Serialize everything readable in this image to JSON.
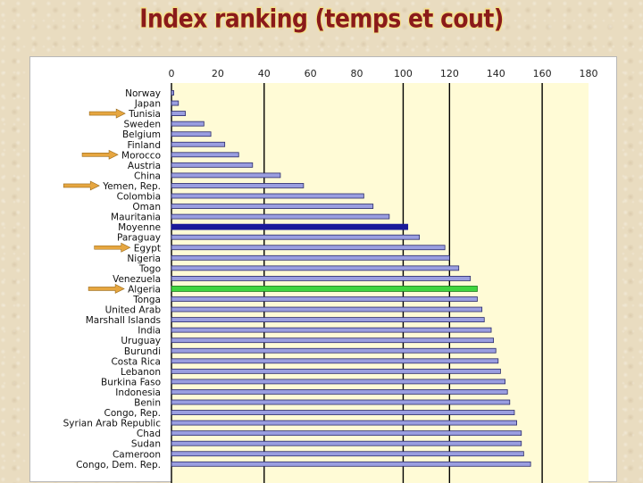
{
  "slide": {
    "title": "Index ranking (temps et cout)"
  },
  "colors": {
    "bar": "#9a9ee0",
    "bar_stroke": "#2a2a6a",
    "moyenne": "#1a1a9a",
    "algeria": "#3fd53f",
    "plot_bg": "#fffbd6",
    "arrow": "#e6a640"
  },
  "chart_data": {
    "type": "bar",
    "orientation": "horizontal",
    "title": "Index ranking (temps et cout)",
    "xlabel": "",
    "ylabel": "",
    "xlim": [
      0,
      180
    ],
    "ticks": [
      0,
      20,
      40,
      60,
      80,
      100,
      120,
      140,
      160,
      180
    ],
    "grid": "vertical lines at 0, 40, 100, 120, 160",
    "gridlines": [
      0,
      40,
      100,
      120,
      160
    ],
    "categories": [
      "Norway",
      "Japan",
      "Tunisia",
      "Sweden",
      "Belgium",
      "Finland",
      "Morocco",
      "Austria",
      "China",
      "Yemen, Rep.",
      "Colombia",
      "Oman",
      "Mauritania",
      "Moyenne",
      "Paraguay",
      "Egypt",
      "Nigeria",
      "Togo",
      "Venezuela",
      "Algeria",
      "Tonga",
      "United Arab",
      "Marshall Islands",
      "India",
      "Uruguay",
      "Burundi",
      "Costa Rica",
      "Lebanon",
      "Burkina Faso",
      "Indonesia",
      "Benin",
      "Congo, Rep.",
      "Syrian Arab Republic",
      "Chad",
      "Sudan",
      "Cameroon",
      "Congo, Dem. Rep."
    ],
    "values": [
      1,
      3,
      6,
      14,
      17,
      23,
      29,
      35,
      47,
      57,
      83,
      87,
      94,
      102,
      107,
      118,
      120,
      124,
      129,
      132,
      132,
      134,
      135,
      138,
      139,
      140,
      141,
      142,
      144,
      145,
      146,
      148,
      149,
      151,
      151,
      152,
      155
    ],
    "highlighted": {
      "Moyenne": "average",
      "Algeria": "focus"
    },
    "arrows_point_to": [
      "Tunisia",
      "Morocco",
      "Yemen, Rep.",
      "Egypt",
      "Algeria"
    ]
  }
}
